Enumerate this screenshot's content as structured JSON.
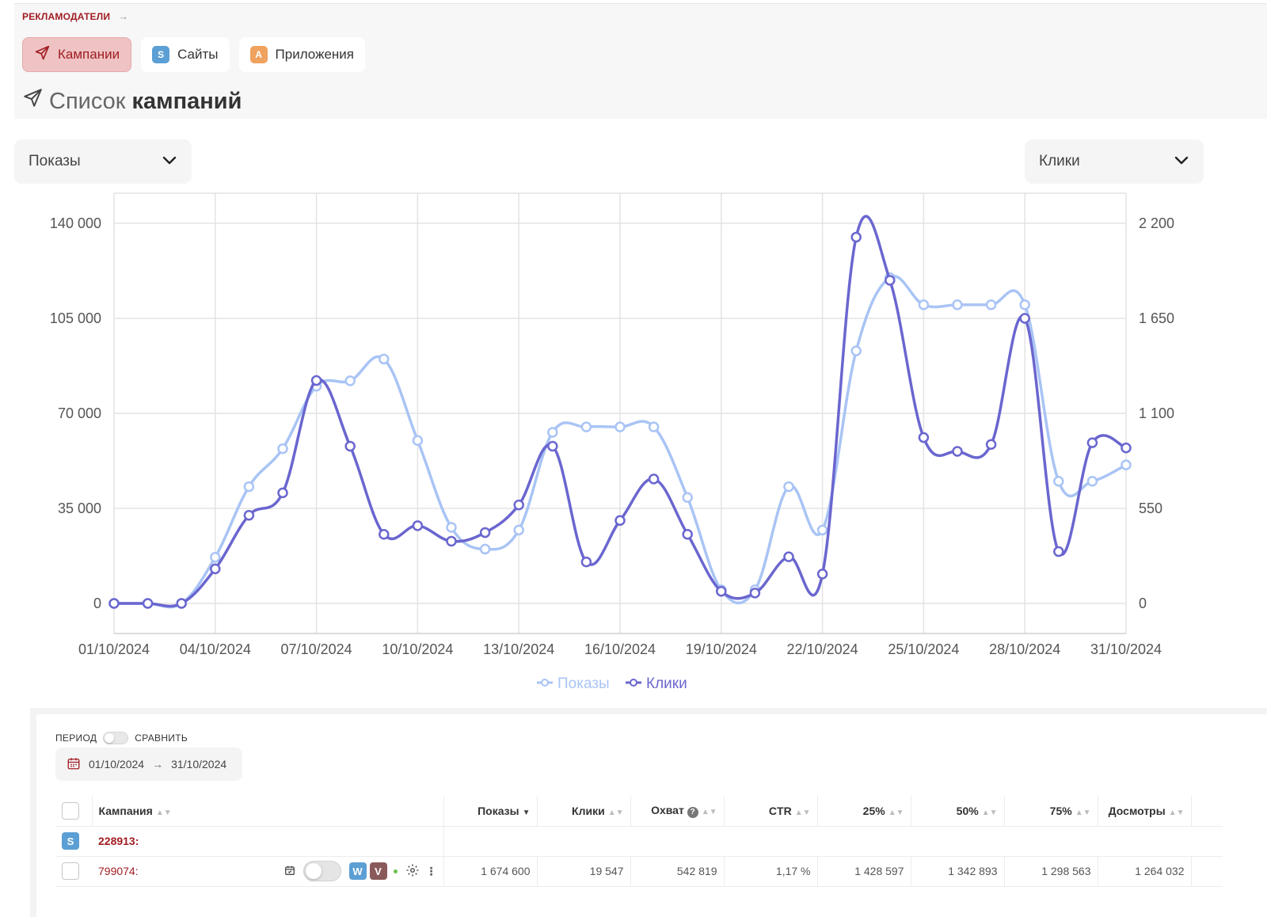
{
  "breadcrumb": {
    "root": "РЕКЛАМОДАТЕЛИ"
  },
  "tabs": [
    {
      "label": "Кампании",
      "badge": ""
    },
    {
      "label": "Сайты",
      "badge": "S"
    },
    {
      "label": "Приложения",
      "badge": "A"
    }
  ],
  "page_title": {
    "light": "Список",
    "bold": "кампаний"
  },
  "selectors": {
    "left": "Показы",
    "right": "Клики"
  },
  "colors": {
    "accent": "#a11d23",
    "series_shows": "#a9c4f5",
    "series_clicks": "#6a66cf"
  },
  "chart_data": {
    "type": "line",
    "x": [
      "01/10/2024",
      "02/10/2024",
      "03/10/2024",
      "04/10/2024",
      "05/10/2024",
      "06/10/2024",
      "07/10/2024",
      "08/10/2024",
      "09/10/2024",
      "10/10/2024",
      "11/10/2024",
      "12/10/2024",
      "13/10/2024",
      "14/10/2024",
      "15/10/2024",
      "16/10/2024",
      "17/10/2024",
      "18/10/2024",
      "19/10/2024",
      "20/10/2024",
      "21/10/2024",
      "22/10/2024",
      "23/10/2024",
      "24/10/2024",
      "25/10/2024",
      "26/10/2024",
      "27/10/2024",
      "28/10/2024",
      "29/10/2024",
      "30/10/2024",
      "31/10/2024"
    ],
    "x_tick_labels": [
      "01/10/2024",
      "04/10/2024",
      "07/10/2024",
      "10/10/2024",
      "13/10/2024",
      "16/10/2024",
      "19/10/2024",
      "22/10/2024",
      "25/10/2024",
      "28/10/2024",
      "31/10/2024"
    ],
    "series": [
      {
        "name": "Показы",
        "axis": "left",
        "values": [
          0,
          0,
          0,
          17000,
          43000,
          57000,
          80000,
          82000,
          90000,
          60000,
          28000,
          20000,
          27000,
          63000,
          65000,
          65000,
          65000,
          39000,
          5000,
          5000,
          43000,
          27000,
          93000,
          120000,
          110000,
          110000,
          110000,
          110000,
          45000,
          45000,
          51000
        ]
      },
      {
        "name": "Клики",
        "axis": "right",
        "values": [
          0,
          0,
          0,
          200,
          510,
          640,
          1290,
          910,
          400,
          450,
          360,
          410,
          570,
          910,
          240,
          480,
          720,
          400,
          70,
          60,
          270,
          170,
          2120,
          1870,
          960,
          880,
          920,
          1650,
          300,
          930,
          900
        ]
      }
    ],
    "y_left": {
      "ticks": [
        "0",
        "35 000",
        "70 000",
        "105 000",
        "140 000"
      ],
      "ylim": [
        0,
        140000
      ]
    },
    "y_right": {
      "ticks": [
        "0",
        "550",
        "1 100",
        "1 650",
        "2 200"
      ],
      "ylim": [
        0,
        2200
      ]
    },
    "grid": true,
    "legend": "bottom-center"
  },
  "period": {
    "label": "ПЕРИОД",
    "compare_label": "СРАВНИТЬ",
    "from": "01/10/2024",
    "to": "31/10/2024"
  },
  "table": {
    "headers": [
      "Кампания",
      "Показы",
      "Клики",
      "Охват",
      "CTR",
      "25%",
      "50%",
      "75%",
      "Досмотры"
    ],
    "group_row": {
      "badge": "S",
      "id": "228913:"
    },
    "rows": [
      {
        "campaign": "799074:",
        "badges": [
          "W",
          "V"
        ],
        "values": [
          "1 674 600",
          "19 547",
          "542 819",
          "1,17 %",
          "1 428 597",
          "1 342 893",
          "1 298 563",
          "1 264 032"
        ]
      }
    ]
  }
}
